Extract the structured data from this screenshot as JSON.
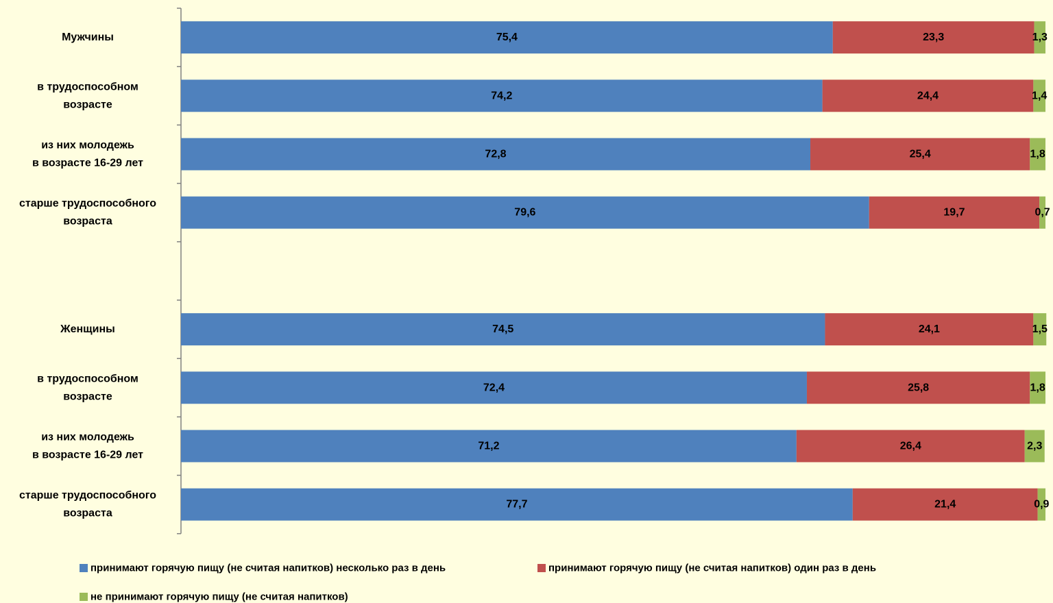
{
  "chart_data": {
    "type": "bar",
    "orientation": "horizontal",
    "stacked": true,
    "xlim": [
      0,
      100
    ],
    "grid": false,
    "legend_position": "bottom",
    "categories": [
      [
        "Мужчины"
      ],
      [
        "в трудоспособном",
        "возрасте"
      ],
      [
        "из них молодежь",
        "в возрасте 16-29 лет"
      ],
      [
        "старше трудоспособного",
        "возраста"
      ],
      [],
      [
        "Женщины"
      ],
      [
        "в трудоспособном",
        "возрасте"
      ],
      [
        "из них молодежь",
        "в возрасте 16-29 лет"
      ],
      [
        "старше трудоспособного",
        "возраста"
      ]
    ],
    "series": [
      {
        "name": "принимают горячую пищу (не считая напитков) несколько раз в день",
        "color": "#4F81BD",
        "values": [
          75.4,
          74.2,
          72.8,
          79.6,
          null,
          74.5,
          72.4,
          71.2,
          77.7
        ],
        "labels": [
          "75,4",
          "74,2",
          "72,8",
          "79,6",
          "",
          "74,5",
          "72,4",
          "71,2",
          "77,7"
        ]
      },
      {
        "name": "принимают горячую пищу (не считая напитков) один раз в день",
        "color": "#C0504D",
        "values": [
          23.3,
          24.4,
          25.4,
          19.7,
          null,
          24.1,
          25.8,
          26.4,
          21.4
        ],
        "labels": [
          "23,3",
          "24,4",
          "25,4",
          "19,7",
          "",
          "24,1",
          "25,8",
          "26,4",
          "21,4"
        ]
      },
      {
        "name": "не принимают горячую пищу (не считая напитков)",
        "color": "#9BBB59",
        "values": [
          1.3,
          1.4,
          1.8,
          0.7,
          null,
          1.5,
          1.8,
          2.3,
          0.9
        ],
        "labels": [
          "1,3",
          "1,4",
          "1,8",
          "0,7",
          "",
          "1,5",
          "1,8",
          "2,3",
          "0,9"
        ]
      }
    ]
  }
}
